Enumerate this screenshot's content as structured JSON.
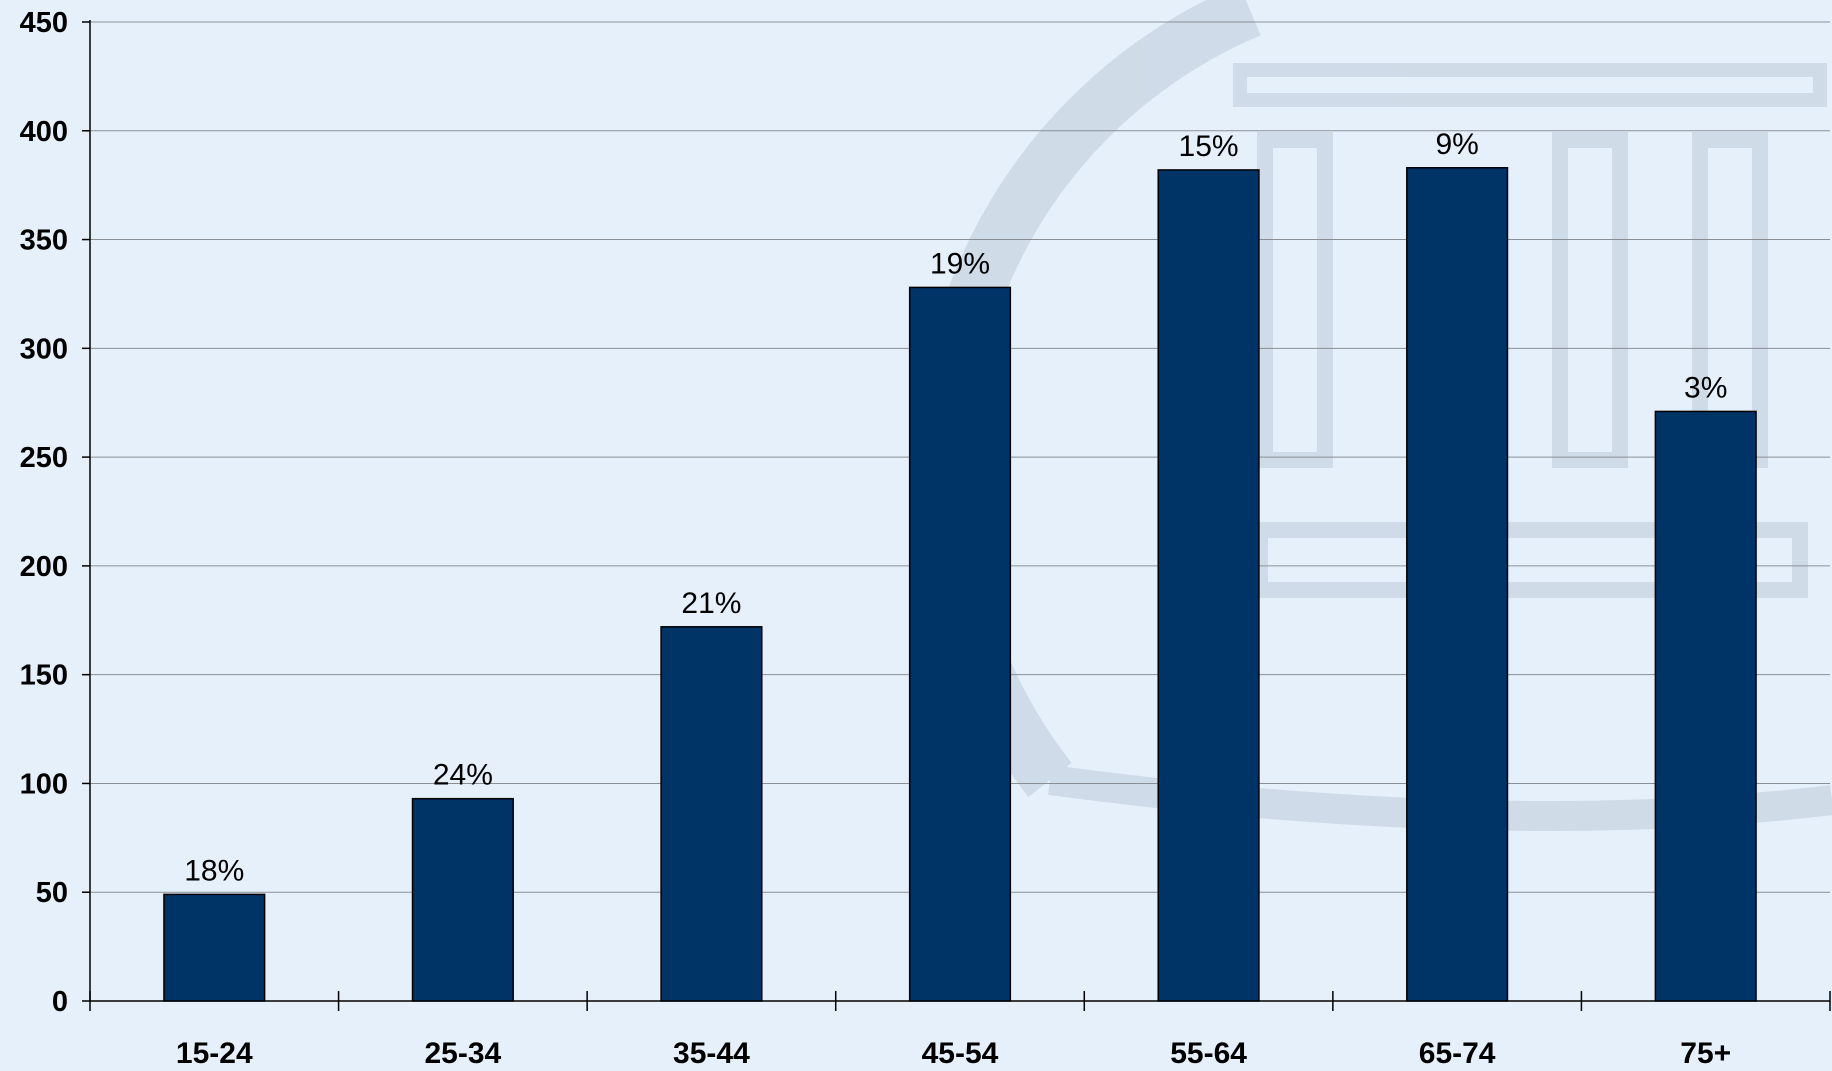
{
  "chart_data": {
    "type": "bar",
    "categories": [
      "15-24",
      "25-34",
      "35-44",
      "45-54",
      "55-64",
      "65-74",
      "75+"
    ],
    "values": [
      49,
      93,
      172,
      328,
      382,
      383,
      271
    ],
    "data_labels": [
      "18%",
      "24%",
      "21%",
      "19%",
      "15%",
      "9%",
      "3%"
    ],
    "title": "",
    "xlabel": "",
    "ylabel": "",
    "ylim": [
      0,
      450
    ],
    "yticks": [
      "0",
      "50",
      "100",
      "150",
      "200",
      "250",
      "300",
      "350",
      "400",
      "450"
    ],
    "grid": true,
    "legend": "none",
    "bar_color": "#003366",
    "background_color": "#e6f0fb"
  }
}
